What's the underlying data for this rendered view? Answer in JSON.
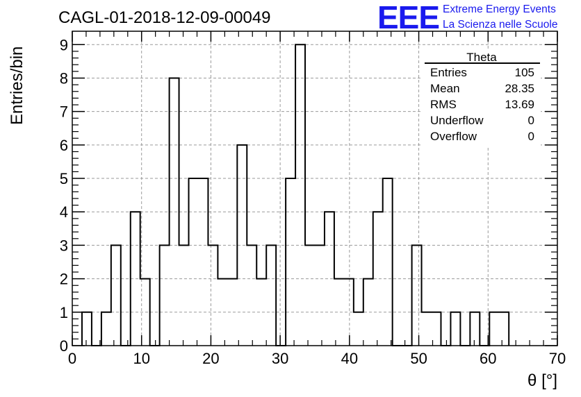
{
  "header": {
    "run_title": "CAGL-01-2018-12-09-00049",
    "logo_text": "EEE",
    "logo_line1": "Extreme Energy Events",
    "logo_line2": "La Scienza nelle Scuole"
  },
  "stats_box": {
    "title": "Theta",
    "rows": [
      {
        "label": "Entries",
        "value": "105"
      },
      {
        "label": "Mean",
        "value": "28.35"
      },
      {
        "label": "RMS",
        "value": "13.69"
      },
      {
        "label": "Underflow",
        "value": "0"
      },
      {
        "label": "Overflow",
        "value": "0"
      }
    ]
  },
  "colors": {
    "logo": "#1a1aee",
    "histogram_line": "#000000",
    "grid": "#9a9a9a",
    "frame": "#000000"
  },
  "chart_data": {
    "type": "bar",
    "histogram": true,
    "title": "",
    "xlabel": "θ [°]",
    "ylabel": "Entries/bin",
    "xlim": [
      0,
      70
    ],
    "ylim": [
      0,
      9.4
    ],
    "grid": true,
    "stats_placement": "top-right",
    "x_ticks": [
      0,
      10,
      20,
      30,
      40,
      50,
      60,
      70
    ],
    "y_ticks": [
      0,
      1,
      2,
      3,
      4,
      5,
      6,
      7,
      8,
      9
    ],
    "bin_width": 1.4,
    "bin_low_edges": [
      1.4,
      2.8,
      4.2,
      5.6,
      7.0,
      8.4,
      9.8,
      11.2,
      12.6,
      14.0,
      15.4,
      16.8,
      18.2,
      19.6,
      21.0,
      22.4,
      23.8,
      25.2,
      26.6,
      28.0,
      29.4,
      30.8,
      32.2,
      33.6,
      35.0,
      36.4,
      37.8,
      39.2,
      40.6,
      42.0,
      43.4,
      44.8,
      46.2,
      47.6,
      49.0,
      50.4,
      51.8,
      53.2,
      54.6,
      56.0,
      57.4,
      58.8,
      60.2,
      61.6
    ],
    "values": [
      1,
      0,
      1,
      3,
      0,
      4,
      2,
      0,
      3,
      8,
      3,
      5,
      5,
      3,
      2,
      2,
      6,
      3,
      2,
      3,
      0,
      5,
      9,
      3,
      3,
      4,
      2,
      2,
      1,
      2,
      4,
      5,
      0,
      0,
      3,
      1,
      1,
      0,
      1,
      0,
      1,
      0,
      1,
      1
    ]
  }
}
